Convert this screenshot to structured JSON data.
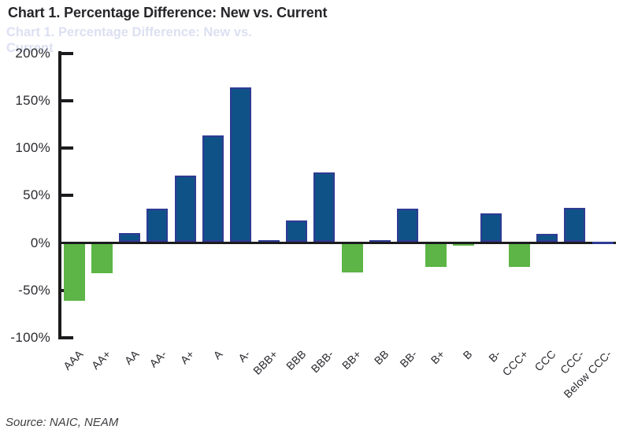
{
  "title": "Chart 1. Percentage Difference: New vs. Current",
  "source_note": "Source: NAIC, NEAM",
  "artifacts": {
    "ghost_title_line1": "Chart 1. Percentage Difference: New vs.",
    "ghost_title_line2": "Current"
  },
  "colors": {
    "title_text": "#26262A",
    "axis": "#1B1B1D",
    "tick_label_text": "#2B2B30"
  },
  "chart_data": {
    "type": "bar",
    "title": "Chart 1. Percentage Difference: New vs. Current",
    "categories": [
      "AAA",
      "AA+",
      "AA",
      "AA-",
      "A+",
      "A",
      "A-",
      "BBB+",
      "BBB",
      "BBB-",
      "BB+",
      "BB",
      "BB-",
      "B+",
      "B",
      "B-",
      "CCC+",
      "CCC",
      "CCC-",
      "Below CCC-"
    ],
    "values": [
      -60,
      -31,
      9,
      35,
      70,
      112,
      163,
      1,
      22,
      73,
      -30,
      2,
      35,
      -24,
      -2,
      30,
      -24,
      8,
      36,
      0
    ],
    "xlabel": "",
    "ylabel": "",
    "ylim": [
      -100,
      200
    ],
    "y_ticks": [
      200,
      150,
      100,
      50,
      0,
      -50,
      -100
    ],
    "y_tick_labels": [
      "200%",
      "150%",
      "100%",
      "50%",
      "0%",
      "-50%",
      "-100%"
    ],
    "grid": false,
    "legend": "none",
    "positive_color": "#0F5288",
    "positive_border_color": "#2F3B93",
    "negative_color": "#5CB546",
    "axis_color": "#1B1B1D",
    "source": "Source: NAIC, NEAM"
  }
}
